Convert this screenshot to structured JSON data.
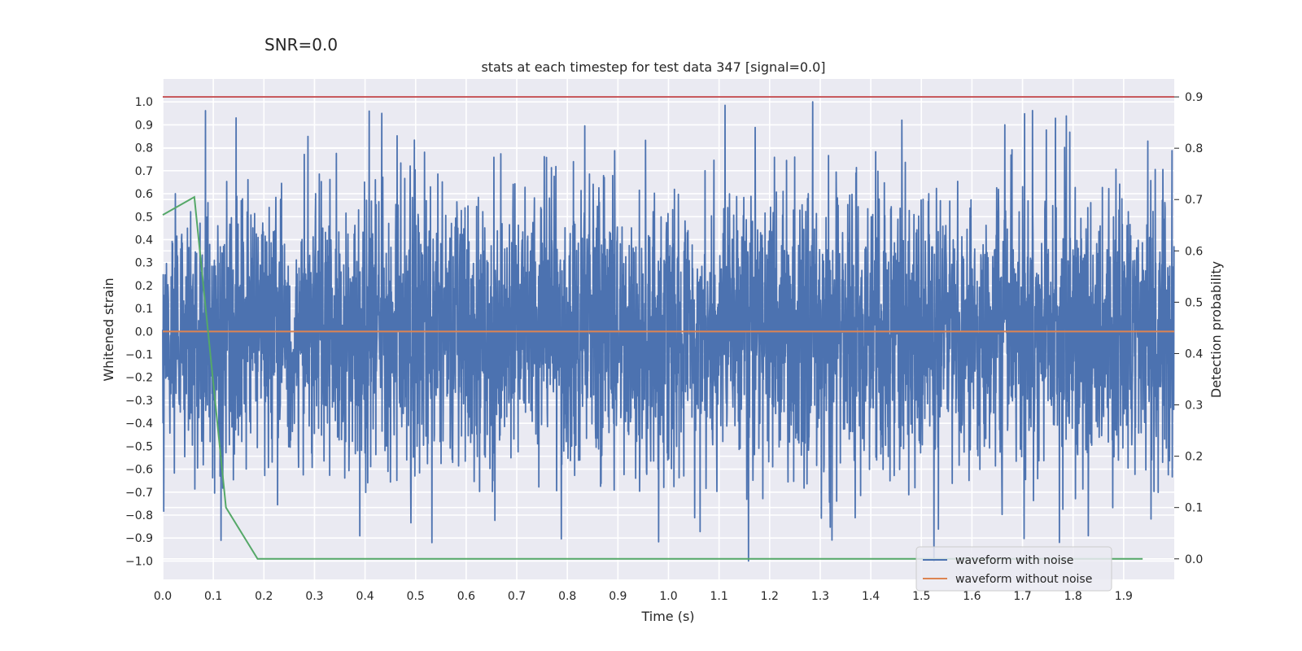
{
  "chart_data": {
    "type": "line",
    "suptitle": "SNR=0.0",
    "title": "stats at each timestep for test data 347 [signal=0.0]",
    "xlabel": "Time (s)",
    "ylabel": "Whitened strain",
    "y2label": "Detection probability",
    "xlim": [
      0.0,
      2.0
    ],
    "ylim": [
      -1.08,
      1.1
    ],
    "y2lim": [
      -0.04,
      0.935
    ],
    "xticks": [
      0.0,
      0.1,
      0.2,
      0.3,
      0.4,
      0.5,
      0.6,
      0.7,
      0.8,
      0.9,
      1.0,
      1.1,
      1.2,
      1.3,
      1.4,
      1.5,
      1.6,
      1.7,
      1.8,
      1.9
    ],
    "yticks": [
      -1.0,
      -0.9,
      -0.8,
      -0.7,
      -0.6,
      -0.5,
      -0.4,
      -0.3,
      -0.2,
      -0.1,
      0.0,
      0.1,
      0.2,
      0.3,
      0.4,
      0.5,
      0.6,
      0.7,
      0.8,
      0.9,
      1.0
    ],
    "y2ticks": [
      0.0,
      0.1,
      0.2,
      0.3,
      0.4,
      0.5,
      0.6,
      0.7,
      0.8,
      0.9
    ],
    "threshold": {
      "axis": "y2",
      "value": 0.9,
      "color": "#c44e52"
    },
    "series": [
      {
        "name": "waveform with noise",
        "axis": "y",
        "color": "#4c72b0",
        "kind": "noise",
        "sample_rate_hz": 2048,
        "x_range": [
          0.0,
          2.0
        ],
        "std": 0.3,
        "clip": [
          -1.0,
          1.0
        ],
        "notable_peaks": [
          [
            0.145,
            0.93
          ],
          [
            0.408,
            0.96
          ],
          [
            0.433,
            0.95
          ],
          [
            1.285,
            1.0
          ],
          [
            1.665,
            0.9
          ],
          [
            1.158,
            -1.0
          ],
          [
            0.532,
            -0.92
          ],
          [
            1.83,
            -0.89
          ],
          [
            0.115,
            -0.91
          ]
        ]
      },
      {
        "name": "waveform without noise",
        "axis": "y",
        "color": "#dd8452",
        "x": [
          0.0,
          2.0
        ],
        "y": [
          0.0,
          0.0
        ]
      },
      {
        "name": "detection probability",
        "axis": "y2",
        "color": "#55a868",
        "in_legend": false,
        "x": [
          0.0,
          0.0625,
          0.125,
          0.1875,
          0.25,
          0.5,
          1.0,
          1.5,
          1.9375
        ],
        "y": [
          0.67,
          0.705,
          0.1,
          0.0,
          0.0,
          0.0,
          0.0,
          0.0,
          0.0
        ]
      }
    ],
    "legend": {
      "location": "lower right",
      "entries": [
        "waveform with noise",
        "waveform without noise"
      ]
    }
  }
}
